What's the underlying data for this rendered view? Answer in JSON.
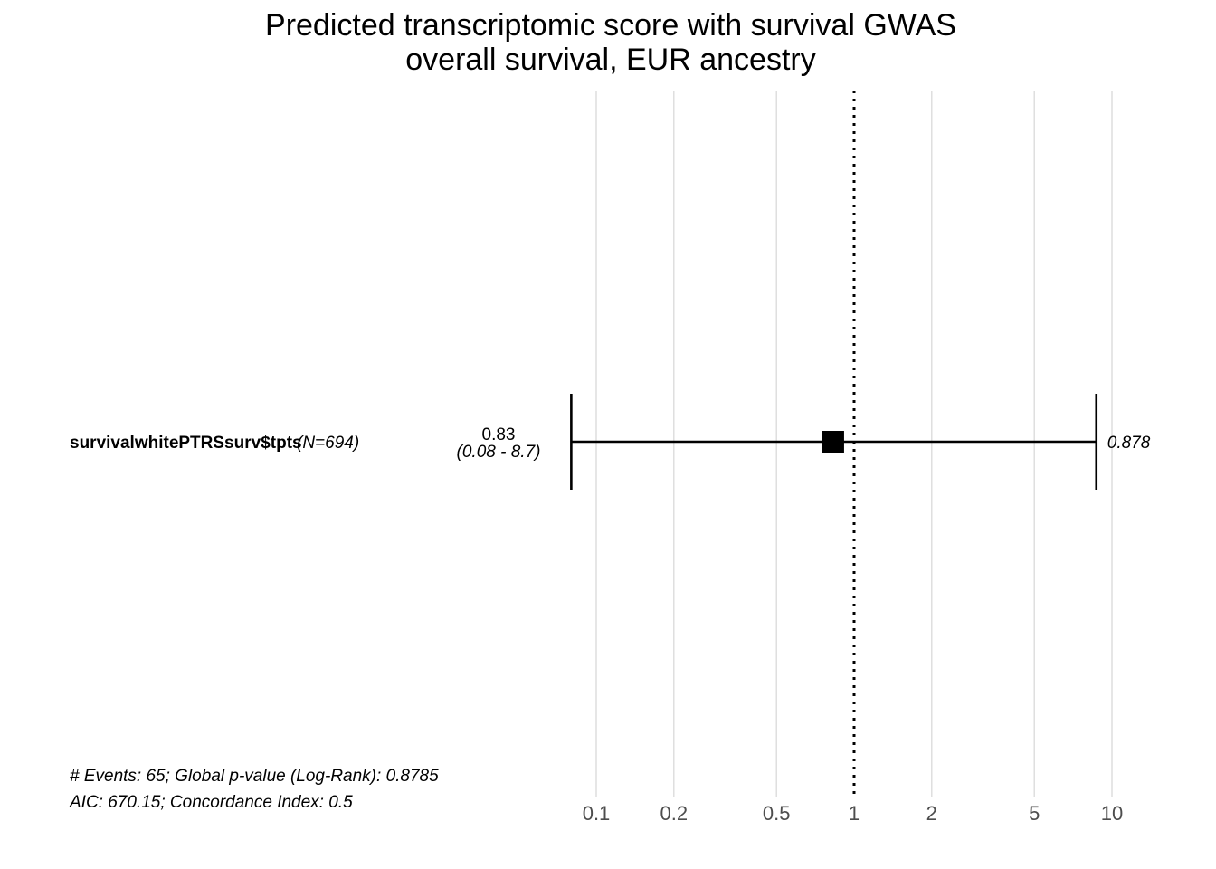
{
  "chart_data": {
    "type": "forest",
    "title_lines": [
      "Predicted transcriptomic score with survival GWAS",
      "overall survival, EUR ancestry"
    ],
    "x_scale": "log",
    "x_ticks": [
      0.1,
      0.2,
      0.5,
      1,
      2,
      5,
      10
    ],
    "x_tick_labels": [
      "0.1",
      "0.2",
      "0.5",
      "1",
      "2",
      "5",
      "10"
    ],
    "xlim": [
      0.08,
      10
    ],
    "reference_line": 1,
    "grid": true,
    "rows": [
      {
        "variable": "survivalwhitePTRSsurv$tpts",
        "n_label": "(N=694)",
        "estimate": 0.83,
        "ci_lower": 0.08,
        "ci_upper": 8.7,
        "estimate_label": "0.83",
        "ci_label": "(0.08 - 8.7)",
        "p_value_label": "0.878"
      }
    ],
    "footer_lines": [
      "# Events: 65; Global p-value (Log-Rank): 0.8785",
      "AIC: 670.15; Concordance Index: 0.5"
    ]
  }
}
